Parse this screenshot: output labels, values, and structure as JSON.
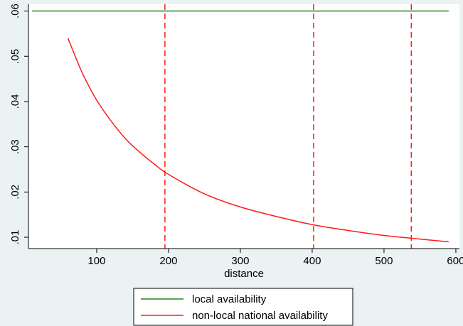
{
  "chart_data": {
    "type": "line",
    "xlabel": "distance",
    "ylabel": "",
    "xlim": [
      5,
      605
    ],
    "ylim": [
      0.0075,
      0.0615
    ],
    "x_ticks": [
      100,
      200,
      300,
      400,
      500,
      600
    ],
    "x_tick_labels": [
      "100",
      "200",
      "300",
      "400",
      "500",
      "600"
    ],
    "y_ticks": [
      0.01,
      0.02,
      0.03,
      0.04,
      0.05,
      0.06
    ],
    "y_tick_labels": [
      ".01",
      ".02",
      ".03",
      ".04",
      ".05",
      ".06"
    ],
    "grid": false,
    "legend_position": "bottom",
    "series": [
      {
        "name": "local availability",
        "color": "#1a8a1a",
        "style": "solid",
        "x": [
          10,
          590
        ],
        "y": [
          0.06,
          0.06
        ]
      },
      {
        "name": "non-local national availability",
        "color": "#ff1a1a",
        "style": "solid",
        "x": [
          60,
          80,
          100,
          120,
          140,
          160,
          180,
          200,
          250,
          300,
          350,
          400,
          450,
          500,
          550,
          590
        ],
        "y": [
          0.054,
          0.0463,
          0.0403,
          0.0357,
          0.0318,
          0.0288,
          0.0262,
          0.0239,
          0.0196,
          0.0167,
          0.0146,
          0.0128,
          0.0115,
          0.0104,
          0.0096,
          0.009
        ]
      }
    ],
    "vlines": {
      "color": "#ff1a1a",
      "style": "dashed",
      "x": [
        195,
        402,
        538
      ]
    }
  }
}
